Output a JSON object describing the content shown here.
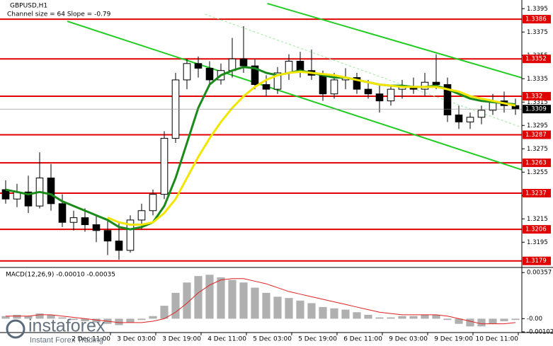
{
  "chart_data": [
    {
      "type": "candlestick",
      "title": "GBPUSD,H1",
      "subtitle": "Channel size = 64 Slope = -0.79",
      "xlim": [
        -0.5,
        45.5
      ],
      "xticks": [
        {
          "value": 9.25,
          "label": "2 Dec 11:00"
        },
        {
          "value": 13.25,
          "label": "3 Dec 03:00"
        },
        {
          "value": 17.25,
          "label": "3 Dec 19:00"
        },
        {
          "value": 21.25,
          "label": "4 Dec 11:00"
        },
        {
          "value": 25.25,
          "label": "5 Dec 03:00"
        },
        {
          "value": 29.25,
          "label": "5 Dec 19:00"
        },
        {
          "value": 33.25,
          "label": "6 Dec 11:00"
        },
        {
          "value": 37.25,
          "label": "9 Dec 03:00"
        },
        {
          "value": 41.25,
          "label": "9 Dec 19:00"
        },
        {
          "value": 45.25,
          "label": "10 Dec 11:00"
        }
      ],
      "ylim": [
        1.3177,
        1.34
      ],
      "yticks": [
        1.3395,
        1.3375,
        1.3355,
        1.3335,
        1.3315,
        1.3295,
        1.3275,
        1.3255,
        1.3235,
        1.3215,
        1.3195
      ],
      "up_color": "#ffffff",
      "down_color": "#000000",
      "open": [
        1.324,
        1.3232,
        1.3238,
        1.3226,
        1.325,
        1.3228,
        1.3212,
        1.3216,
        1.321,
        1.3205,
        1.3196,
        1.3188,
        1.3214,
        1.3222,
        1.3236,
        1.3284,
        1.3334,
        1.3348,
        1.3344,
        1.3334,
        1.3342,
        1.3352,
        1.3346,
        1.333,
        1.3326,
        1.334,
        1.335,
        1.3342,
        1.3338,
        1.3322,
        1.3334,
        1.3336,
        1.3326,
        1.3322,
        1.3316,
        1.3326,
        1.3328,
        1.3326,
        1.3332,
        1.333,
        1.3304,
        1.3298,
        1.3302,
        1.3308,
        1.3316,
        1.3312
      ],
      "high": [
        1.3248,
        1.3245,
        1.3252,
        1.3272,
        1.3262,
        1.3236,
        1.3222,
        1.3224,
        1.3218,
        1.3214,
        1.3212,
        1.3218,
        1.3228,
        1.324,
        1.329,
        1.334,
        1.3352,
        1.3354,
        1.335,
        1.3348,
        1.337,
        1.338,
        1.3352,
        1.3338,
        1.3345,
        1.3356,
        1.3358,
        1.336,
        1.3342,
        1.334,
        1.3344,
        1.334,
        1.3334,
        1.333,
        1.333,
        1.3334,
        1.3336,
        1.334,
        1.3356,
        1.3336,
        1.3312,
        1.3306,
        1.3312,
        1.3322,
        1.3324,
        1.3318
      ],
      "low": [
        1.3228,
        1.3225,
        1.322,
        1.3224,
        1.3222,
        1.3208,
        1.3205,
        1.3204,
        1.3195,
        1.3184,
        1.318,
        1.3186,
        1.3206,
        1.3218,
        1.3232,
        1.328,
        1.3326,
        1.3336,
        1.3328,
        1.333,
        1.3336,
        1.334,
        1.3326,
        1.332,
        1.3322,
        1.3334,
        1.3336,
        1.3334,
        1.3316,
        1.3318,
        1.3326,
        1.3322,
        1.3318,
        1.3306,
        1.3312,
        1.3318,
        1.3322,
        1.332,
        1.3326,
        1.3298,
        1.3292,
        1.3292,
        1.3296,
        1.3304,
        1.3306,
        1.3304
      ],
      "close": [
        1.3232,
        1.3238,
        1.3226,
        1.325,
        1.3228,
        1.3212,
        1.3216,
        1.321,
        1.3205,
        1.3196,
        1.3188,
        1.3214,
        1.3222,
        1.3236,
        1.3284,
        1.3334,
        1.3348,
        1.3344,
        1.3334,
        1.3342,
        1.3352,
        1.3346,
        1.333,
        1.3326,
        1.334,
        1.335,
        1.3342,
        1.3338,
        1.3322,
        1.3334,
        1.3336,
        1.3326,
        1.3322,
        1.3316,
        1.3326,
        1.3328,
        1.3326,
        1.3332,
        1.333,
        1.3304,
        1.3298,
        1.3302,
        1.3308,
        1.3316,
        1.3312,
        1.3309
      ],
      "series": [
        {
          "color": "#1a8a1a",
          "values": [
            1.324,
            1.3238,
            1.3236,
            1.3238,
            1.3236,
            1.323,
            1.3226,
            1.3222,
            1.3218,
            1.3214,
            1.3208,
            1.3206,
            1.3208,
            1.3212,
            1.3226,
            1.325,
            1.328,
            1.331,
            1.333,
            1.3338,
            1.3342,
            1.3345,
            1.3344,
            1.334,
            1.3338,
            1.334,
            1.3342,
            1.334,
            1.3338,
            1.3336,
            1.3336,
            1.3334,
            1.3332,
            1.333,
            1.3329,
            1.3329,
            1.3328,
            1.3328,
            1.3329,
            1.3326,
            1.3322,
            1.3318,
            1.3316,
            1.3315,
            1.3314,
            1.3313
          ]
        },
        {
          "color": "#f2e600",
          "values": [
            null,
            null,
            null,
            null,
            null,
            null,
            null,
            null,
            null,
            1.3216,
            1.3212,
            1.321,
            1.321,
            1.3212,
            1.322,
            1.3232,
            1.325,
            1.3268,
            1.3284,
            1.3298,
            1.331,
            1.332,
            1.3328,
            1.3334,
            1.3338,
            1.334,
            1.3341,
            1.334,
            1.3339,
            1.3338,
            1.3336,
            1.3334,
            1.3332,
            1.333,
            1.3329,
            1.3328,
            1.3328,
            1.3328,
            1.3328,
            1.3326,
            1.3324,
            1.332,
            1.3318,
            1.3316,
            1.3314,
            1.3312
          ]
        }
      ],
      "levels": [
        1.3386,
        1.3352,
        1.332,
        1.3287,
        1.3263,
        1.3237,
        1.3206,
        1.3179
      ],
      "level_color": "#e00000",
      "current_price": 1.3309,
      "trendlines": [
        {
          "color": "#22cc22",
          "x": [
            5.44,
            45.56
          ],
          "y": [
            1.33842,
            1.3257
          ]
        },
        {
          "color": "#22cc22",
          "x": [
            23.1,
            45.56
          ],
          "y": [
            1.33994,
            1.33358
          ]
        },
        {
          "color": "#9be89b",
          "dashed": true,
          "x": [
            17.6,
            45.56
          ],
          "y": [
            1.33903,
            1.32933
          ]
        }
      ]
    },
    {
      "type": "macd",
      "title": "MACD(12,26,9) -0.00010 -0.00035",
      "xlim": [
        -0.5,
        45.5
      ],
      "ylim": [
        -0.00102,
        0.0038
      ],
      "yticks": [
        0.00357,
        {
          "value": 0,
          "label": "-0.00"
        },
        -0.00102
      ],
      "histogram_color": "#b0b0b0",
      "values": [
        0.0002,
        0.0003,
        0.0002,
        0.0004,
        0.0003,
        0.0001,
        -0.0001,
        -0.0002,
        -0.0003,
        -0.0004,
        -0.0005,
        -0.0003,
        -0.0001,
        0.0002,
        0.001,
        0.002,
        0.0028,
        0.0033,
        0.0034,
        0.0032,
        0.003,
        0.0028,
        0.0024,
        0.002,
        0.0017,
        0.0016,
        0.0014,
        0.0012,
        0.0009,
        0.0008,
        0.0007,
        0.0005,
        0.0003,
        0.0001,
        0.0001,
        0.0002,
        0.0002,
        0.0003,
        0.0003,
        -0.0001,
        -0.0004,
        -0.0006,
        -0.0006,
        -0.0004,
        -0.0002,
        -0.0001
      ],
      "signal_color": "#e02020",
      "signal": [
        0.0002,
        0.0002,
        0.0002,
        0.0003,
        0.0003,
        0.0002,
        0.0001,
        0,
        -0.0001,
        -0.0002,
        -0.0003,
        -0.0003,
        -0.0003,
        -0.0002,
        0,
        0.0005,
        0.0012,
        0.002,
        0.0026,
        0.003,
        0.0031,
        0.0031,
        0.0029,
        0.0027,
        0.0024,
        0.0021,
        0.0019,
        0.0017,
        0.0015,
        0.0013,
        0.0011,
        0.0009,
        0.0007,
        0.0005,
        0.0004,
        0.0003,
        0.0003,
        0.0003,
        0.0003,
        0.0002,
        0,
        -0.0002,
        -0.0004,
        -0.0004,
        -0.0004,
        -0.0003
      ]
    }
  ],
  "watermark": {
    "brand": "instaforex",
    "tagline": "Instant Forex Trading"
  }
}
